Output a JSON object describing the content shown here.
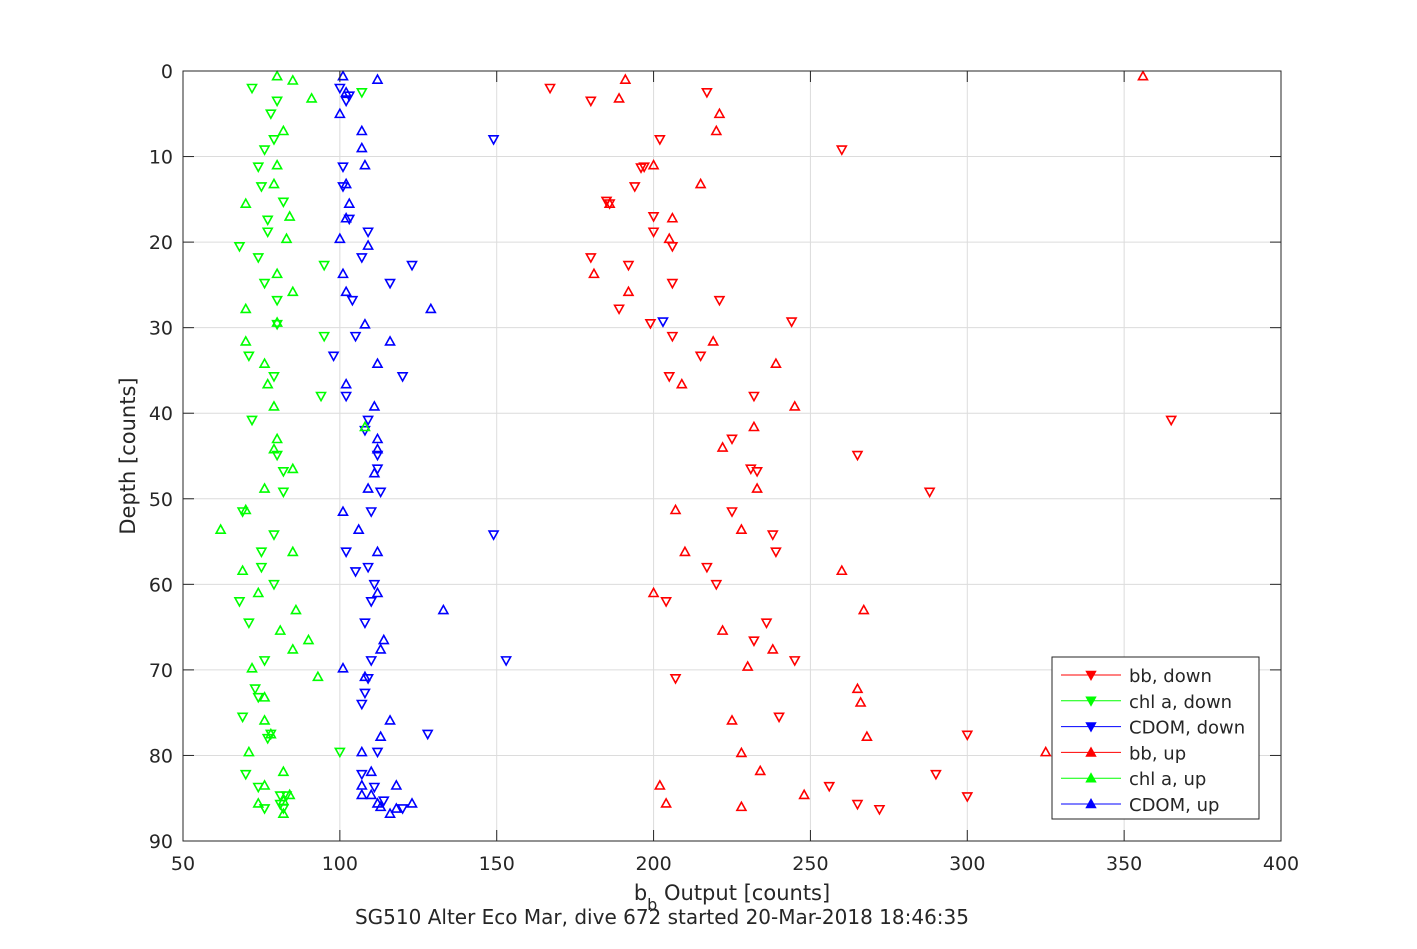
{
  "chart_data": {
    "type": "scatter",
    "xlabel_main": "b",
    "xlabel_sub": "b",
    "xlabel_rest": " Output [counts]",
    "ylabel": "Depth [counts]",
    "caption": "SG510 Alter Eco Mar, dive 672 started 20-Mar-2018 18:46:35",
    "xlim": [
      50,
      400
    ],
    "ylim": [
      0,
      90
    ],
    "y_reversed": true,
    "grid": true,
    "legend_position": "bottom-right",
    "x_ticks": [
      50,
      100,
      150,
      200,
      250,
      300,
      350,
      400
    ],
    "y_ticks": [
      0,
      10,
      20,
      30,
      40,
      50,
      60,
      70,
      80,
      90
    ],
    "series": [
      {
        "name": "bb, down",
        "color": "#ff0000",
        "marker": "triangle-down",
        "points": [
          [
            167,
            2
          ],
          [
            180,
            3.5
          ],
          [
            217,
            2.5
          ],
          [
            202,
            8
          ],
          [
            260,
            9.2
          ],
          [
            197,
            11.2
          ],
          [
            196,
            11.3
          ],
          [
            194,
            13.5
          ],
          [
            185,
            15.2
          ],
          [
            186,
            15.5
          ],
          [
            200,
            17
          ],
          [
            200,
            18.8
          ],
          [
            206,
            20.5
          ],
          [
            180,
            21.8
          ],
          [
            192,
            22.7
          ],
          [
            206,
            24.8
          ],
          [
            221,
            26.8
          ],
          [
            189,
            27.8
          ],
          [
            199,
            29.5
          ],
          [
            244,
            29.3
          ],
          [
            206,
            31
          ],
          [
            215,
            33.3
          ],
          [
            205,
            35.7
          ],
          [
            232,
            38
          ],
          [
            365,
            40.8
          ],
          [
            225,
            43
          ],
          [
            265,
            44.9
          ],
          [
            233,
            46.8
          ],
          [
            231,
            46.5
          ],
          [
            288,
            49.2
          ],
          [
            225,
            51.5
          ],
          [
            238,
            54.2
          ],
          [
            239,
            56.2
          ],
          [
            217,
            58
          ],
          [
            220,
            60
          ],
          [
            204,
            62
          ],
          [
            236,
            64.5
          ],
          [
            232,
            66.6
          ],
          [
            245,
            68.9
          ],
          [
            207,
            71
          ],
          [
            240,
            75.5
          ],
          [
            300,
            77.6
          ],
          [
            290,
            82.2
          ],
          [
            256,
            83.6
          ],
          [
            300,
            84.8
          ],
          [
            265,
            85.7
          ],
          [
            272,
            86.3
          ]
        ]
      },
      {
        "name": "chl a, down",
        "color": "#00ff00",
        "marker": "triangle-down",
        "points": [
          [
            72,
            2
          ],
          [
            80,
            3.5
          ],
          [
            78,
            5
          ],
          [
            79,
            8
          ],
          [
            76,
            9.2
          ],
          [
            74,
            11.2
          ],
          [
            75,
            13.5
          ],
          [
            82,
            15.3
          ],
          [
            77,
            17.4
          ],
          [
            77,
            18.8
          ],
          [
            68,
            20.5
          ],
          [
            74,
            21.8
          ],
          [
            95,
            22.7
          ],
          [
            76,
            24.8
          ],
          [
            80,
            26.8
          ],
          [
            80,
            29.6
          ],
          [
            95,
            31
          ],
          [
            71,
            33.3
          ],
          [
            79,
            35.7
          ],
          [
            94,
            38
          ],
          [
            72,
            40.8
          ],
          [
            80,
            44.9
          ],
          [
            82,
            46.8
          ],
          [
            82,
            49.2
          ],
          [
            69,
            51.5
          ],
          [
            79,
            54.2
          ],
          [
            75,
            56.2
          ],
          [
            75,
            58
          ],
          [
            79,
            60
          ],
          [
            68,
            62
          ],
          [
            71,
            64.5
          ],
          [
            76,
            68.9
          ],
          [
            73,
            72.2
          ],
          [
            74,
            73.2
          ],
          [
            69,
            75.5
          ],
          [
            77,
            78
          ],
          [
            70,
            82.2
          ],
          [
            74,
            83.7
          ],
          [
            81,
            84.7
          ],
          [
            76,
            86.2
          ],
          [
            83,
            84.7
          ],
          [
            107,
            2.5
          ],
          [
            81,
            85.7
          ],
          [
            82,
            86.2
          ],
          [
            78,
            77.5
          ],
          [
            100,
            79.6
          ]
        ]
      },
      {
        "name": "CDOM, down",
        "color": "#0000ff",
        "marker": "triangle-down",
        "points": [
          [
            100,
            2
          ],
          [
            103,
            2.9
          ],
          [
            102,
            3.5
          ],
          [
            149,
            8
          ],
          [
            101,
            11.2
          ],
          [
            101,
            13.5
          ],
          [
            103,
            17.3
          ],
          [
            109,
            18.8
          ],
          [
            107,
            21.8
          ],
          [
            123,
            22.7
          ],
          [
            116,
            24.8
          ],
          [
            104,
            26.8
          ],
          [
            203,
            29.3
          ],
          [
            105,
            31
          ],
          [
            98,
            33.3
          ],
          [
            120,
            35.7
          ],
          [
            102,
            38
          ],
          [
            109,
            40.8
          ],
          [
            108,
            42
          ],
          [
            112,
            44.9
          ],
          [
            112,
            46.5
          ],
          [
            113,
            49.2
          ],
          [
            110,
            51.5
          ],
          [
            149,
            54.2
          ],
          [
            102,
            56.2
          ],
          [
            105,
            58.5
          ],
          [
            111,
            60
          ],
          [
            110,
            62
          ],
          [
            108,
            64.5
          ],
          [
            110,
            68.9
          ],
          [
            108,
            72.7
          ],
          [
            107,
            74
          ],
          [
            109,
            71
          ],
          [
            128,
            77.5
          ],
          [
            112,
            79.6
          ],
          [
            107,
            82.2
          ],
          [
            111,
            83.7
          ],
          [
            114,
            85.3
          ],
          [
            120,
            86.2
          ],
          [
            153,
            68.9
          ],
          [
            109,
            58
          ]
        ]
      },
      {
        "name": "bb, up",
        "color": "#ff0000",
        "marker": "triangle-up",
        "points": [
          [
            356,
            0.6
          ],
          [
            191,
            1
          ],
          [
            189,
            3.2
          ],
          [
            221,
            5
          ],
          [
            220,
            7
          ],
          [
            200,
            11
          ],
          [
            215,
            13.2
          ],
          [
            186,
            15.5
          ],
          [
            206,
            17.2
          ],
          [
            205,
            19.6
          ],
          [
            181,
            23.7
          ],
          [
            192,
            25.8
          ],
          [
            219,
            31.6
          ],
          [
            239,
            34.2
          ],
          [
            209,
            36.6
          ],
          [
            245,
            39.2
          ],
          [
            232,
            41.6
          ],
          [
            222,
            44
          ],
          [
            233,
            48.8
          ],
          [
            207,
            51.3
          ],
          [
            228,
            53.6
          ],
          [
            210,
            56.2
          ],
          [
            260,
            58.4
          ],
          [
            200,
            61
          ],
          [
            267,
            63
          ],
          [
            222,
            65.4
          ],
          [
            238,
            67.6
          ],
          [
            230,
            69.6
          ],
          [
            265,
            72.2
          ],
          [
            266,
            73.8
          ],
          [
            225,
            75.9
          ],
          [
            268,
            77.8
          ],
          [
            228,
            79.7
          ],
          [
            325,
            79.6
          ],
          [
            234,
            81.8
          ],
          [
            202,
            83.5
          ],
          [
            204,
            85.6
          ],
          [
            228,
            86
          ],
          [
            248,
            84.6
          ]
        ]
      },
      {
        "name": "chl a, up",
        "color": "#00ff00",
        "marker": "triangle-up",
        "points": [
          [
            80,
            0.6
          ],
          [
            85,
            1.1
          ],
          [
            91,
            3.2
          ],
          [
            82,
            7
          ],
          [
            80,
            11
          ],
          [
            79,
            13.2
          ],
          [
            70,
            15.5
          ],
          [
            84,
            17
          ],
          [
            83,
            19.6
          ],
          [
            80,
            23.7
          ],
          [
            85,
            25.8
          ],
          [
            70,
            27.8
          ],
          [
            80,
            29.4
          ],
          [
            70,
            31.6
          ],
          [
            76,
            34.2
          ],
          [
            77,
            36.6
          ],
          [
            79,
            39.2
          ],
          [
            80,
            43
          ],
          [
            79,
            44.2
          ],
          [
            85,
            46.5
          ],
          [
            76,
            48.8
          ],
          [
            70,
            51.3
          ],
          [
            62,
            53.6
          ],
          [
            85,
            56.2
          ],
          [
            69,
            58.4
          ],
          [
            74,
            61
          ],
          [
            86,
            63
          ],
          [
            81,
            65.4
          ],
          [
            90,
            66.5
          ],
          [
            85,
            67.6
          ],
          [
            72,
            69.8
          ],
          [
            93,
            70.8
          ],
          [
            76,
            73.2
          ],
          [
            76,
            75.9
          ],
          [
            78,
            77.5
          ],
          [
            71,
            79.6
          ],
          [
            82,
            81.9
          ],
          [
            76,
            83.5
          ],
          [
            84,
            84.6
          ],
          [
            74,
            85.6
          ],
          [
            82,
            86.8
          ],
          [
            108,
            41.6
          ],
          [
            82,
            85.3
          ]
        ]
      },
      {
        "name": "CDOM, up",
        "color": "#0000ff",
        "marker": "triangle-up",
        "points": [
          [
            101,
            0.6
          ],
          [
            112,
            1
          ],
          [
            102,
            2.5
          ],
          [
            100,
            5
          ],
          [
            107,
            7
          ],
          [
            107,
            9
          ],
          [
            108,
            11
          ],
          [
            102,
            13.2
          ],
          [
            103,
            15.5
          ],
          [
            102,
            17.2
          ],
          [
            100,
            19.6
          ],
          [
            109,
            20.4
          ],
          [
            101,
            23.7
          ],
          [
            102,
            25.8
          ],
          [
            129,
            27.8
          ],
          [
            108,
            29.6
          ],
          [
            116,
            31.6
          ],
          [
            112,
            34.2
          ],
          [
            102,
            36.6
          ],
          [
            111,
            39.2
          ],
          [
            112,
            43
          ],
          [
            112,
            44.2
          ],
          [
            111,
            47
          ],
          [
            109,
            48.8
          ],
          [
            112,
            56.2
          ],
          [
            112,
            61
          ],
          [
            133,
            63
          ],
          [
            114,
            66.5
          ],
          [
            113,
            67.6
          ],
          [
            101,
            69.8
          ],
          [
            108,
            70.8
          ],
          [
            116,
            75.9
          ],
          [
            113,
            77.8
          ],
          [
            107,
            79.6
          ],
          [
            110,
            81.9
          ],
          [
            118,
            83.5
          ],
          [
            107,
            84.6
          ],
          [
            110,
            84.6
          ],
          [
            112,
            85.6
          ],
          [
            113,
            86
          ],
          [
            123,
            85.6
          ],
          [
            116,
            86.8
          ],
          [
            118,
            86.2
          ],
          [
            107,
            83.5
          ],
          [
            101,
            51.5
          ],
          [
            106,
            53.6
          ]
        ]
      }
    ]
  }
}
